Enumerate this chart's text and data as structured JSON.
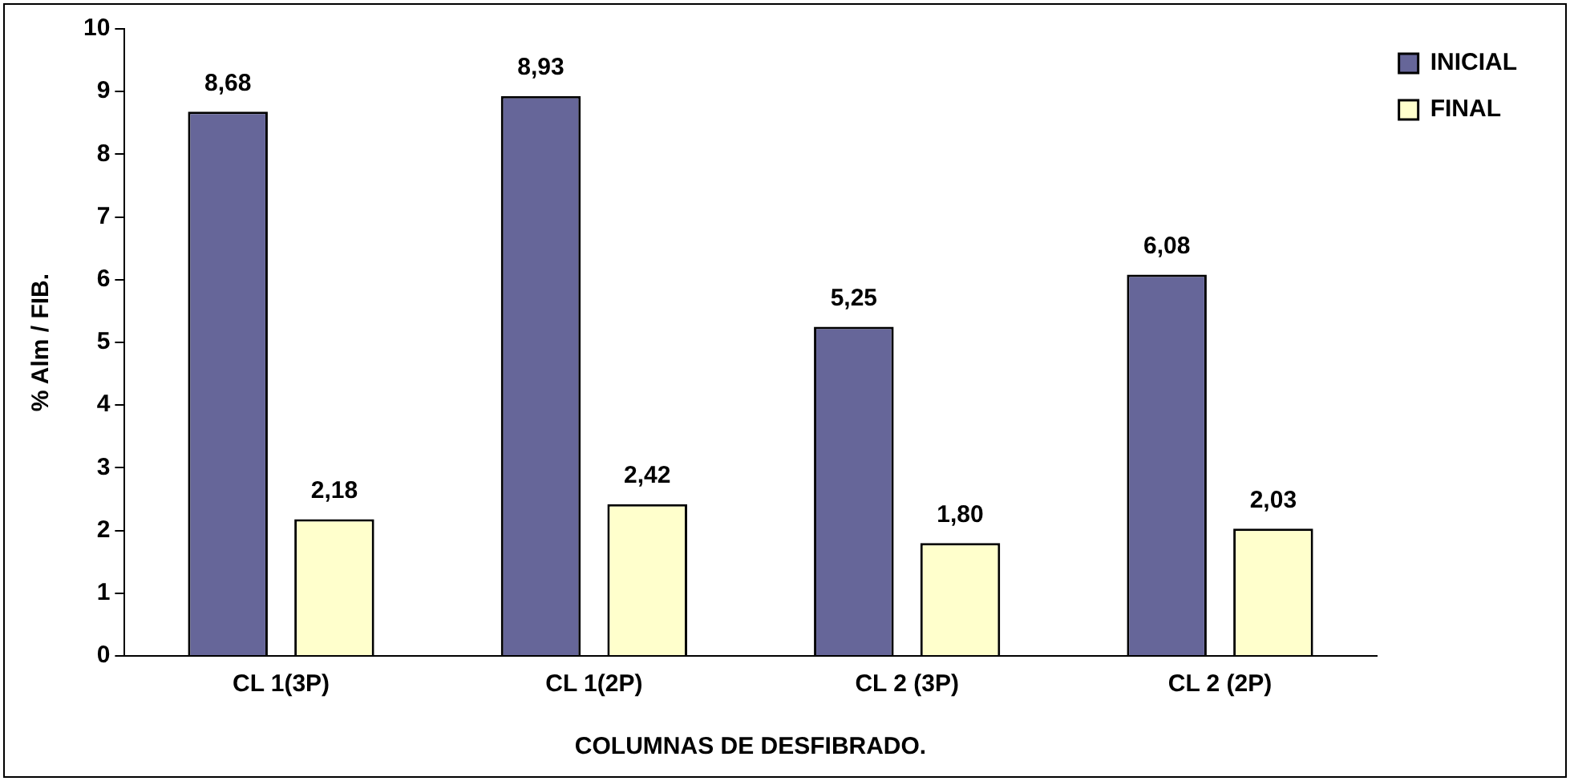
{
  "chart_data": {
    "type": "bar",
    "xlabel": "COLUMNAS DE DESFIBRADO.",
    "ylabel": "% Alm / FIB.",
    "categories": [
      "CL 1(3P)",
      "CL 1(2P)",
      "CL 2 (3P)",
      "CL 2 (2P)"
    ],
    "series": [
      {
        "name": "INICIAL",
        "color": "#666699",
        "values": [
          8.68,
          8.93,
          5.25,
          6.08
        ],
        "value_labels": [
          "8,68",
          "8,93",
          "5,25",
          "6,08"
        ]
      },
      {
        "name": "FINAL",
        "color": "#ffffcc",
        "values": [
          2.18,
          2.42,
          1.8,
          2.03
        ],
        "value_labels": [
          "2,18",
          "2,42",
          "1,80",
          "2,03"
        ]
      }
    ],
    "ylim": [
      0,
      10
    ],
    "yticks": [
      0,
      1,
      2,
      3,
      4,
      5,
      6,
      7,
      8,
      9,
      10
    ],
    "grid": false,
    "legend": "top right"
  }
}
